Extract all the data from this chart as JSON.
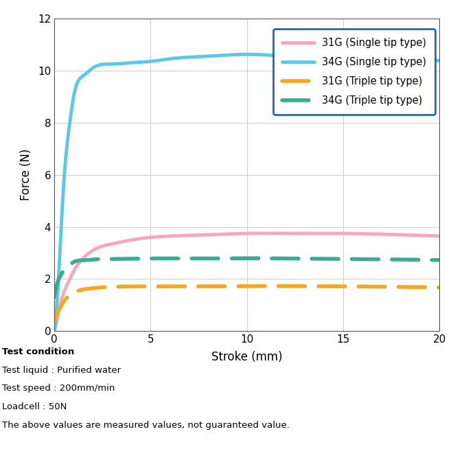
{
  "title": "",
  "xlabel": "Stroke (mm)",
  "ylabel": "Force (N)",
  "xlim": [
    0,
    20
  ],
  "ylim": [
    0,
    12
  ],
  "xticks": [
    0,
    5,
    10,
    15,
    20
  ],
  "yticks": [
    0,
    2,
    4,
    6,
    8,
    10,
    12
  ],
  "colors": {
    "31G_single": "#f9a8bc",
    "34G_single": "#5bc8e8",
    "31G_triple": "#f5a623",
    "34G_triple": "#3aab8e"
  },
  "legend_labels": [
    "31G (Single tip type)",
    "34G (Single tip type)",
    "31G (Triple tip type)",
    "34G (Triple tip type)"
  ],
  "legend_box_color": "#2266bb",
  "annotation_lines": [
    "Test condition",
    "Test liquid : Purified water",
    "Test speed : 200mm/min",
    "Loadcell : 50N",
    "The above values are measured values, not guaranteed value."
  ],
  "curves": {
    "31G_single": {
      "x": [
        0,
        0.05,
        0.1,
        0.2,
        0.3,
        0.5,
        0.8,
        1.0,
        1.5,
        2.0,
        3.0,
        4.0,
        5.0,
        6.0,
        8.0,
        10.0,
        12.0,
        15.0,
        18.0,
        20.0
      ],
      "y": [
        0,
        0.15,
        0.3,
        0.65,
        1.0,
        1.5,
        2.0,
        2.3,
        2.8,
        3.1,
        3.35,
        3.5,
        3.6,
        3.65,
        3.7,
        3.75,
        3.75,
        3.75,
        3.7,
        3.65
      ]
    },
    "34G_single": {
      "x": [
        0,
        0.05,
        0.1,
        0.2,
        0.3,
        0.5,
        0.8,
        1.0,
        1.5,
        2.0,
        3.0,
        4.0,
        5.0,
        6.0,
        8.0,
        10.0,
        12.0,
        15.0,
        18.0,
        20.0
      ],
      "y": [
        0,
        0.3,
        0.7,
        1.8,
        3.2,
        5.8,
        8.0,
        9.0,
        9.8,
        10.1,
        10.25,
        10.3,
        10.35,
        10.45,
        10.55,
        10.62,
        10.55,
        10.45,
        10.4,
        10.38
      ]
    },
    "31G_triple": {
      "x": [
        0,
        0.1,
        0.3,
        0.5,
        0.8,
        1.0,
        1.5,
        2.0,
        3.0,
        5.0,
        8.0,
        10.0,
        12.0,
        15.0,
        18.0,
        20.0
      ],
      "y": [
        0.4,
        0.6,
        0.9,
        1.15,
        1.38,
        1.48,
        1.6,
        1.65,
        1.7,
        1.72,
        1.72,
        1.73,
        1.73,
        1.72,
        1.7,
        1.68
      ]
    },
    "34G_triple": {
      "x": [
        0,
        0.1,
        0.3,
        0.5,
        0.8,
        1.0,
        1.5,
        2.0,
        3.0,
        5.0,
        8.0,
        10.0,
        12.0,
        15.0,
        18.0,
        20.0
      ],
      "y": [
        1.3,
        1.7,
        2.1,
        2.35,
        2.55,
        2.65,
        2.72,
        2.75,
        2.77,
        2.79,
        2.79,
        2.8,
        2.79,
        2.77,
        2.75,
        2.73
      ]
    }
  },
  "fig_width": 6.6,
  "fig_height": 6.7,
  "dpi": 100
}
